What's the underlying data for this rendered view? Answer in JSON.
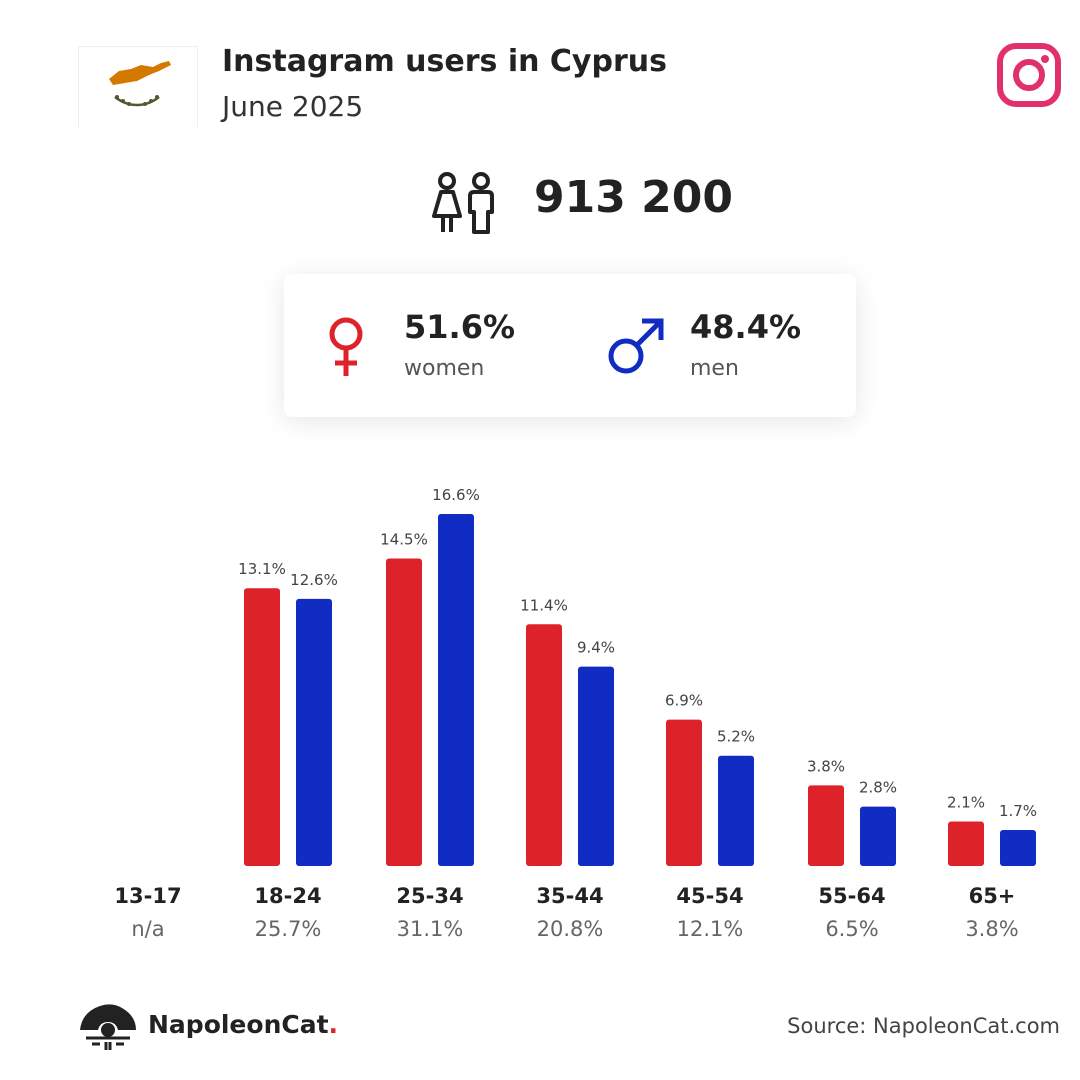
{
  "header": {
    "title": "Instagram users in Cyprus",
    "subtitle": "June 2025"
  },
  "total_users": "913 200",
  "gender": {
    "women": {
      "percent": "51.6%",
      "label": "women"
    },
    "men": {
      "percent": "48.4%",
      "label": "men"
    }
  },
  "colors": {
    "women": "#dd2229",
    "men": "#102cc3",
    "instagram": "#e1306c",
    "flag_island": "#d57800",
    "flag_wreath": "#4e5b31"
  },
  "icons": {
    "flag": "cyprus-flag-icon",
    "social": "instagram-icon",
    "users": "people-icon",
    "women": "female-symbol-icon",
    "men": "male-symbol-icon",
    "brand": "napoleoncat-logo-icon"
  },
  "chart_data": {
    "type": "bar",
    "categories": [
      "13-17",
      "18-24",
      "25-34",
      "35-44",
      "45-54",
      "55-64",
      "65+"
    ],
    "category_totals": [
      "n/a",
      "25.7%",
      "31.1%",
      "20.8%",
      "12.1%",
      "6.5%",
      "3.8%"
    ],
    "series": [
      {
        "name": "women",
        "values": [
          null,
          13.1,
          14.5,
          11.4,
          6.9,
          3.8,
          2.1
        ]
      },
      {
        "name": "men",
        "values": [
          null,
          12.6,
          16.6,
          9.4,
          5.2,
          2.8,
          1.7
        ]
      }
    ],
    "value_labels": [
      [
        "",
        "13.1%",
        "14.5%",
        "11.4%",
        "6.9%",
        "3.8%",
        "2.1%"
      ],
      [
        "",
        "12.6%",
        "16.6%",
        "9.4%",
        "5.2%",
        "2.8%",
        "1.7%"
      ]
    ],
    "ylim": [
      0,
      16.6
    ],
    "grid": false
  },
  "footer": {
    "brand_name": "NapoleonCat",
    "brand_dot": ".",
    "source": "Source: NapoleonCat.com"
  }
}
